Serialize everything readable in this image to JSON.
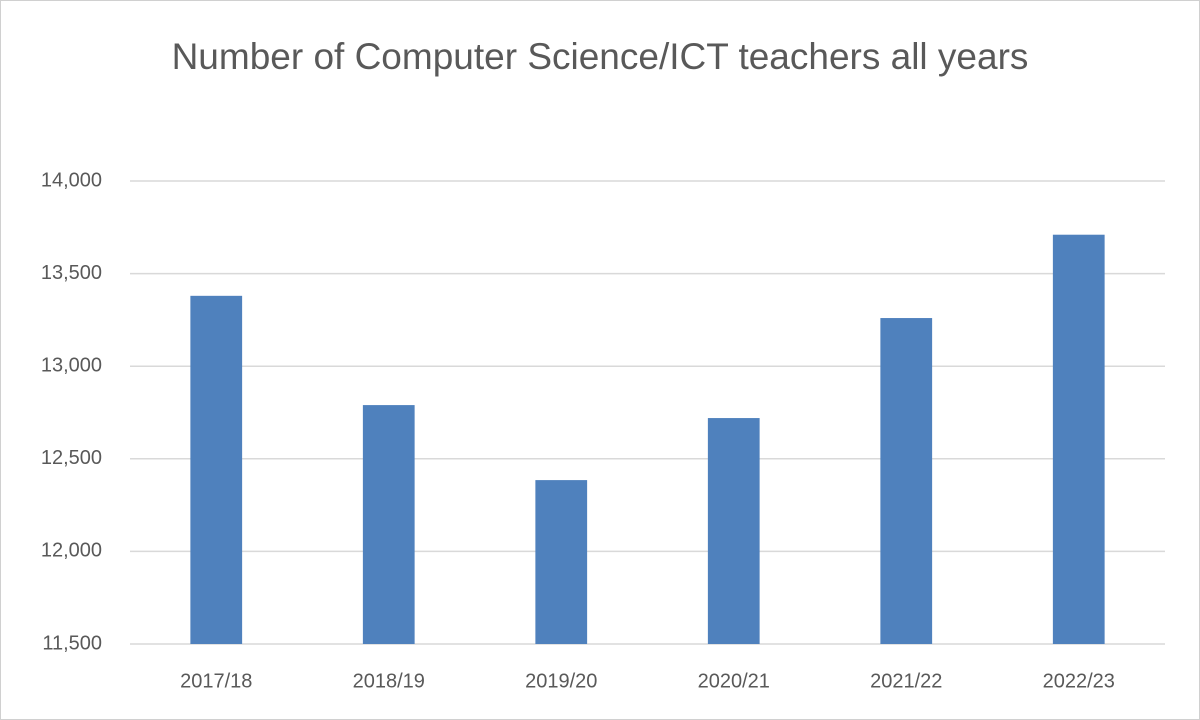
{
  "chart_data": {
    "type": "bar",
    "title": "Number of Computer Science/ICT teachers all years",
    "categories": [
      "2017/18",
      "2018/19",
      "2019/20",
      "2020/21",
      "2021/22",
      "2022/23"
    ],
    "values": [
      13380,
      12790,
      12385,
      12720,
      13260,
      13710
    ],
    "color": "#4f81bd",
    "ylim": [
      11500,
      14000
    ],
    "yticks": [
      {
        "value": 11500,
        "label": "11,500"
      },
      {
        "value": 12000,
        "label": "12,000"
      },
      {
        "value": 12500,
        "label": "12,500"
      },
      {
        "value": 13000,
        "label": "13,000"
      },
      {
        "value": 13500,
        "label": "13,500"
      },
      {
        "value": 14000,
        "label": "14,000"
      }
    ],
    "grid": true
  }
}
